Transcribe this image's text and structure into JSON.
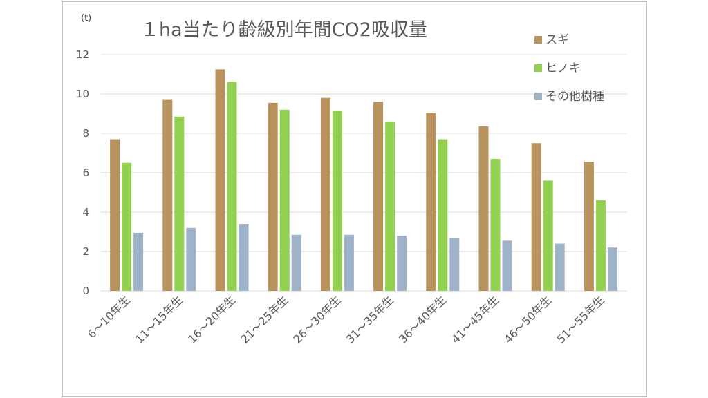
{
  "chart_data": {
    "type": "bar",
    "title": "１ha当たり齢級別年間CO2吸収量",
    "unit_label": "(t)",
    "xlabel": "",
    "ylabel": "",
    "ylim": [
      0,
      12
    ],
    "yticks": [
      0,
      2,
      4,
      6,
      8,
      10,
      12
    ],
    "grid": true,
    "legend_position": "top-right",
    "categories": [
      "6～10年生",
      "11～15年生",
      "16～20年生",
      "21～25年生",
      "26～30年生",
      "31～35年生",
      "36～40年生",
      "41～45年生",
      "46～50年生",
      "51～55年生"
    ],
    "series": [
      {
        "name": "スギ",
        "color": "#b8935e",
        "values": [
          7.7,
          9.7,
          11.25,
          9.55,
          9.8,
          9.6,
          9.05,
          8.35,
          7.5,
          6.55
        ]
      },
      {
        "name": "ヒノキ",
        "color": "#92d050",
        "values": [
          6.5,
          8.85,
          10.6,
          9.2,
          9.15,
          8.6,
          7.7,
          6.7,
          5.6,
          4.6
        ]
      },
      {
        "name": "その他樹種",
        "color": "#9fb3c8",
        "values": [
          2.95,
          3.2,
          3.4,
          2.85,
          2.85,
          2.8,
          2.7,
          2.55,
          2.4,
          2.2
        ]
      }
    ]
  }
}
